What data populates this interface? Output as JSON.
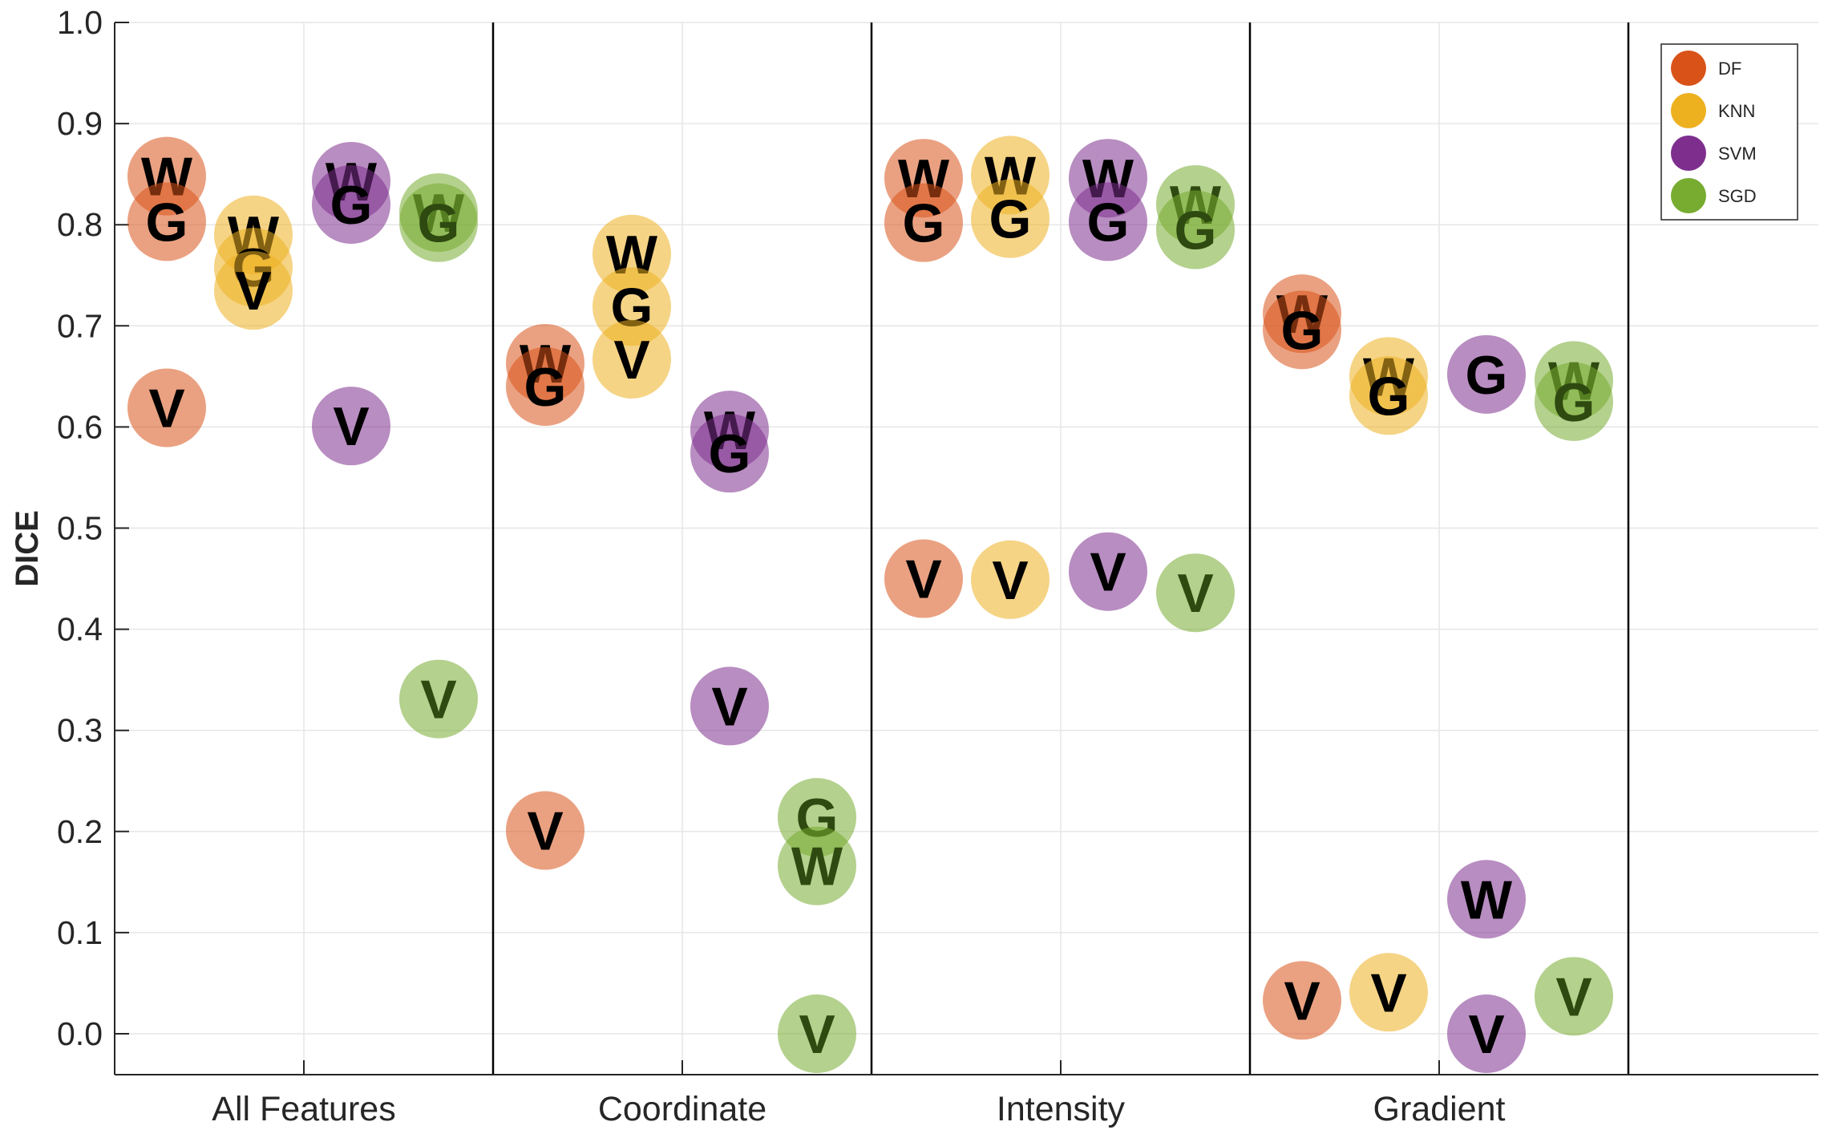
{
  "chart_data": {
    "type": "scatter",
    "ylabel": "DICE",
    "xlabel": "",
    "ylim": [
      -0.04,
      1.0
    ],
    "yticks": [
      "0.0",
      "0.1",
      "0.2",
      "0.3",
      "0.4",
      "0.5",
      "0.6",
      "0.7",
      "0.8",
      "0.9",
      "1.0"
    ],
    "categories": [
      "All Features",
      "Coordinate",
      "Intensity",
      "Gradient"
    ],
    "grid": true,
    "legend": "top-right",
    "series": [
      {
        "name": "DF",
        "color": "#D95319",
        "points": [
          {
            "category": "All Features",
            "label": "W",
            "y": 0.848
          },
          {
            "category": "All Features",
            "label": "G",
            "y": 0.803
          },
          {
            "category": "All Features",
            "label": "V",
            "y": 0.619
          },
          {
            "category": "Coordinate",
            "label": "W",
            "y": 0.663
          },
          {
            "category": "Coordinate",
            "label": "G",
            "y": 0.64
          },
          {
            "category": "Coordinate",
            "label": "V",
            "y": 0.201
          },
          {
            "category": "Intensity",
            "label": "W",
            "y": 0.846
          },
          {
            "category": "Intensity",
            "label": "G",
            "y": 0.802
          },
          {
            "category": "Intensity",
            "label": "V",
            "y": 0.45
          },
          {
            "category": "Gradient",
            "label": "W",
            "y": 0.712
          },
          {
            "category": "Gradient",
            "label": "G",
            "y": 0.696
          },
          {
            "category": "Gradient",
            "label": "V",
            "y": 0.033
          }
        ]
      },
      {
        "name": "KNN",
        "color": "#EDB120",
        "points": [
          {
            "category": "All Features",
            "label": "W",
            "y": 0.79
          },
          {
            "category": "All Features",
            "label": "G",
            "y": 0.758
          },
          {
            "category": "All Features",
            "label": "V",
            "y": 0.735
          },
          {
            "category": "Coordinate",
            "label": "W",
            "y": 0.771
          },
          {
            "category": "Coordinate",
            "label": "G",
            "y": 0.719
          },
          {
            "category": "Coordinate",
            "label": "V",
            "y": 0.667
          },
          {
            "category": "Intensity",
            "label": "W",
            "y": 0.849
          },
          {
            "category": "Intensity",
            "label": "G",
            "y": 0.806
          },
          {
            "category": "Intensity",
            "label": "V",
            "y": 0.449
          },
          {
            "category": "Gradient",
            "label": "W",
            "y": 0.65
          },
          {
            "category": "Gradient",
            "label": "G",
            "y": 0.631
          },
          {
            "category": "Gradient",
            "label": "V",
            "y": 0.041
          }
        ]
      },
      {
        "name": "SVM",
        "color": "#7E2F8E",
        "points": [
          {
            "category": "All Features",
            "label": "W",
            "y": 0.843
          },
          {
            "category": "All Features",
            "label": "G",
            "y": 0.82
          },
          {
            "category": "All Features",
            "label": "V",
            "y": 0.601
          },
          {
            "category": "Coordinate",
            "label": "W",
            "y": 0.597
          },
          {
            "category": "Coordinate",
            "label": "G",
            "y": 0.574
          },
          {
            "category": "Coordinate",
            "label": "V",
            "y": 0.324
          },
          {
            "category": "Intensity",
            "label": "W",
            "y": 0.846
          },
          {
            "category": "Intensity",
            "label": "G",
            "y": 0.803
          },
          {
            "category": "Intensity",
            "label": "V",
            "y": 0.457
          },
          {
            "category": "Gradient",
            "label": "G",
            "y": 0.652
          },
          {
            "category": "Gradient",
            "label": "W",
            "y": 0.133
          },
          {
            "category": "Gradient",
            "label": "V",
            "y": 0.0
          }
        ]
      },
      {
        "name": "SGD",
        "color": "#77AC30",
        "points": [
          {
            "category": "All Features",
            "label": "W",
            "y": 0.812
          },
          {
            "category": "All Features",
            "label": "G",
            "y": 0.802
          },
          {
            "category": "All Features",
            "label": "V",
            "y": 0.331
          },
          {
            "category": "Coordinate",
            "label": "G",
            "y": 0.214
          },
          {
            "category": "Coordinate",
            "label": "W",
            "y": 0.166
          },
          {
            "category": "Coordinate",
            "label": "V",
            "y": 0.0
          },
          {
            "category": "Intensity",
            "label": "W",
            "y": 0.82
          },
          {
            "category": "Intensity",
            "label": "G",
            "y": 0.795
          },
          {
            "category": "Intensity",
            "label": "V",
            "y": 0.436
          },
          {
            "category": "Gradient",
            "label": "W",
            "y": 0.646
          },
          {
            "category": "Gradient",
            "label": "G",
            "y": 0.625
          },
          {
            "category": "Gradient",
            "label": "V",
            "y": 0.037
          }
        ]
      }
    ]
  }
}
